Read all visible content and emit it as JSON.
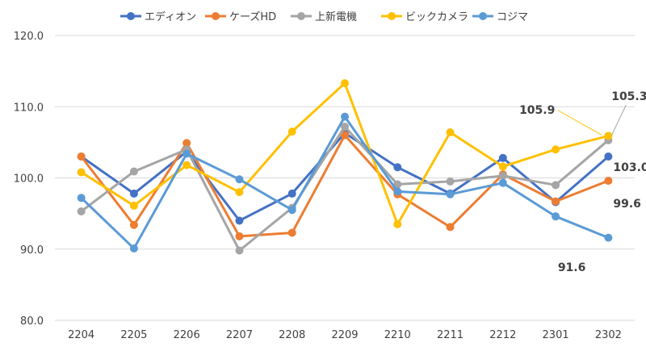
{
  "chart_data": {
    "type": "line",
    "title": "",
    "xlabel": "",
    "ylabel": "",
    "x": [
      "2204",
      "2205",
      "2206",
      "2207",
      "2208",
      "2209",
      "2210",
      "2211",
      "2212",
      "2301",
      "2302"
    ],
    "ylim": [
      80,
      120
    ],
    "yticks": [
      "80.0",
      "90.0",
      "100.0",
      "110.0",
      "120.0"
    ],
    "grid": true,
    "legend_position": "top",
    "series": [
      {
        "name": "エディオン",
        "color": "#4472C4",
        "values": [
          103.0,
          97.8,
          103.7,
          94.0,
          97.8,
          106.3,
          101.5,
          97.8,
          102.8,
          96.6,
          103.0
        ]
      },
      {
        "name": "ケーズHD",
        "color": "#ED7D31",
        "values": [
          103.0,
          93.4,
          104.9,
          91.8,
          92.3,
          106.0,
          97.7,
          93.1,
          100.5,
          96.7,
          99.6
        ]
      },
      {
        "name": "上新電機",
        "color": "#A5A5A5",
        "values": [
          95.3,
          100.9,
          104.0,
          89.8,
          95.8,
          107.2,
          99.1,
          99.5,
          100.3,
          99.0,
          105.3
        ]
      },
      {
        "name": "ビックカメラ",
        "color": "#FFC000",
        "values": [
          100.8,
          96.1,
          101.8,
          98.0,
          106.5,
          113.3,
          93.5,
          106.4,
          101.6,
          104.0,
          105.9
        ]
      },
      {
        "name": "コジマ",
        "color": "#5B9BD5",
        "values": [
          97.2,
          90.1,
          103.4,
          99.8,
          95.5,
          108.6,
          98.1,
          97.7,
          99.3,
          94.6,
          91.6
        ]
      }
    ],
    "data_labels": [
      {
        "series": 1,
        "text": "99.6"
      },
      {
        "series": 2,
        "text": "105.3"
      },
      {
        "series": 0,
        "text": "103.0"
      },
      {
        "series": 3,
        "text": "105.9"
      },
      {
        "series": 4,
        "text": "91.6"
      }
    ]
  }
}
